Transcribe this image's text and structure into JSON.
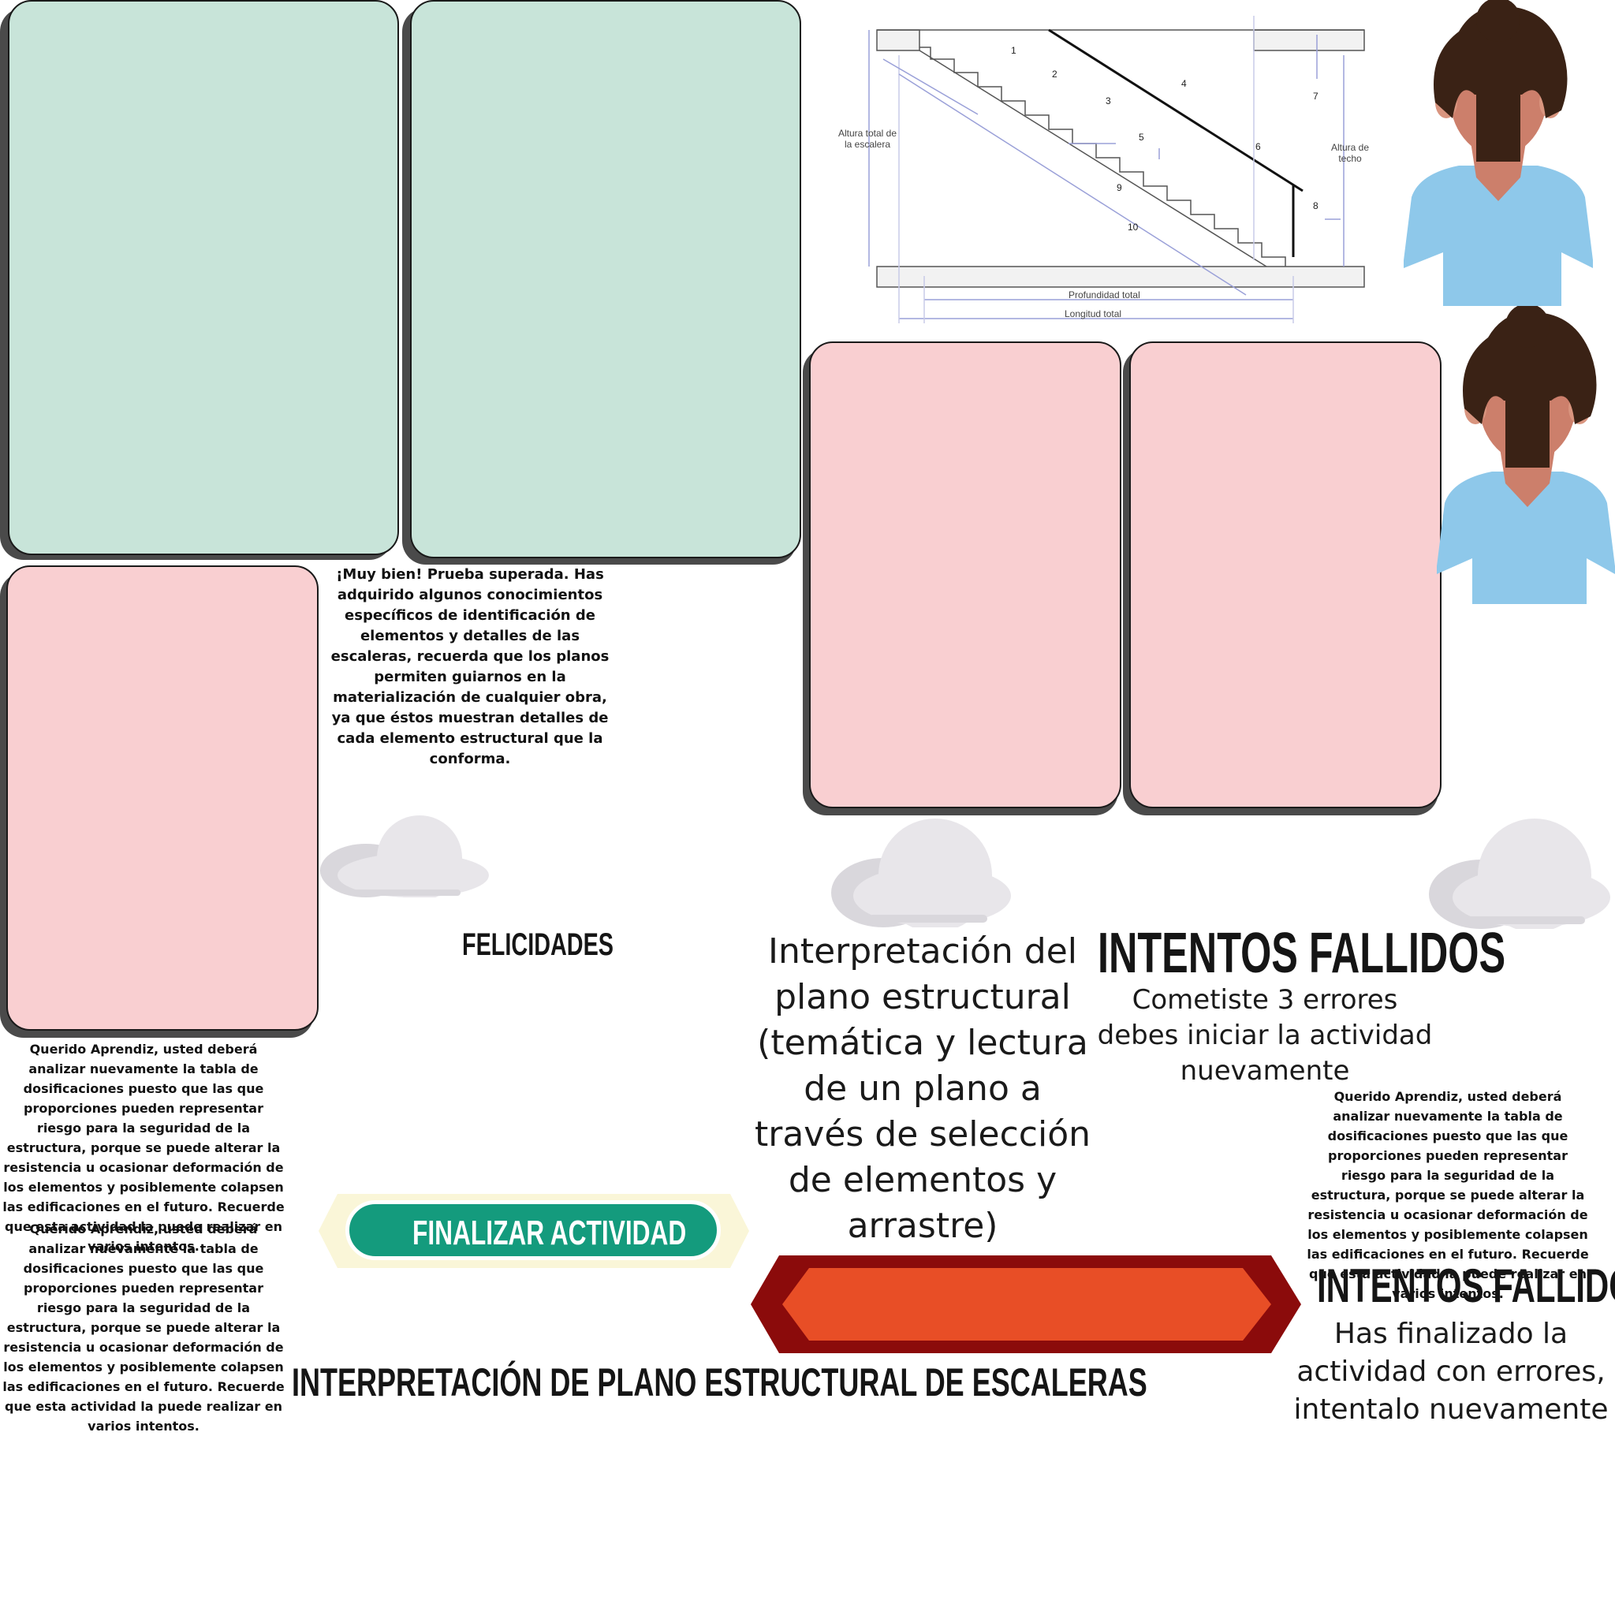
{
  "cards": {
    "green_left": "green-card",
    "green_right": "green-card",
    "pink_left": "pink-card",
    "pink_mid": "pink-card",
    "pink_right": "pink-card"
  },
  "success": {
    "message": "¡Muy bien!  Prueba superada. Has adquirido algunos conocimientos específicos de identificación de elementos y detalles de las escaleras, recuerda que los planos permiten guiarnos en la materialización de cualquier obra, ya que éstos muestran detalles de cada elemento estructural que la conforma.",
    "title": "FELICIDADES"
  },
  "feedback": {
    "message_1": "Querido Aprendiz, usted deberá analizar nuevamente la tabla de dosificaciones puesto que las que proporciones pueden representar riesgo para la seguridad de la estructura, porque se puede alterar la resistencia u ocasionar deformación de los elementos y posiblemente colapsen las edificaciones en el futuro. Recuerde que esta actividad la puede realizar en varios intentos.",
    "message_2": "Querido Aprendiz, usted deberá analizar nuevamente la tabla de dosificaciones puesto que las que proporciones pueden representar riesgo para la seguridad de la estructura, porque se puede alterar la resistencia u ocasionar deformación de los elementos y posiblemente colapsen las edificaciones en el futuro. Recuerde que esta actividad la puede realizar en varios intentos.",
    "message_3": "Querido Aprendiz, usted deberá analizar nuevamente la tabla de dosificaciones puesto que las que proporciones pueden representar riesgo para la seguridad de la estructura, porque se puede alterar la resistencia u ocasionar deformación de los elementos y posiblemente colapsen las edificaciones en el futuro. Recuerde que esta actividad la puede realizar en varios intentos."
  },
  "activity": {
    "description": "Interpretación del plano estructural (temática y lectura de un plano a través de selección de elementos y arrastre)",
    "finish_button": "FINALIZAR ACTIVIDAD",
    "main_title": "INTERPRETACIÓN DE PLANO ESTRUCTURAL DE ESCALERAS"
  },
  "failed_1": {
    "title": "INTENTOS FALLIDOS",
    "message": "Cometiste 3 errores debes iniciar la actividad nuevamente"
  },
  "failed_2": {
    "title": "INTENTOS FALLIDOS",
    "message": "Has finalizado la actividad con errores, intentalo nuevamente"
  },
  "stair_diagram": {
    "labels": [
      "1",
      "2",
      "3",
      "4",
      "5",
      "6",
      "7",
      "8",
      "9",
      "10"
    ],
    "total_height": "Altura total de la escalera",
    "ceiling_height": "Altura de techo",
    "total_depth": "Profundidad total",
    "total_length": "Longitud total"
  },
  "colors": {
    "green_card": "#c8e4d9",
    "pink_card": "#f9cfd1",
    "finish_button": "#149b7d",
    "banner_dark": "#8b0b0b",
    "banner_orange": "#e84e26",
    "shirt": "#8ec8ea",
    "skin": "#cc7f6b",
    "hair": "#3a2215",
    "cloud": "#e8e6ea"
  }
}
